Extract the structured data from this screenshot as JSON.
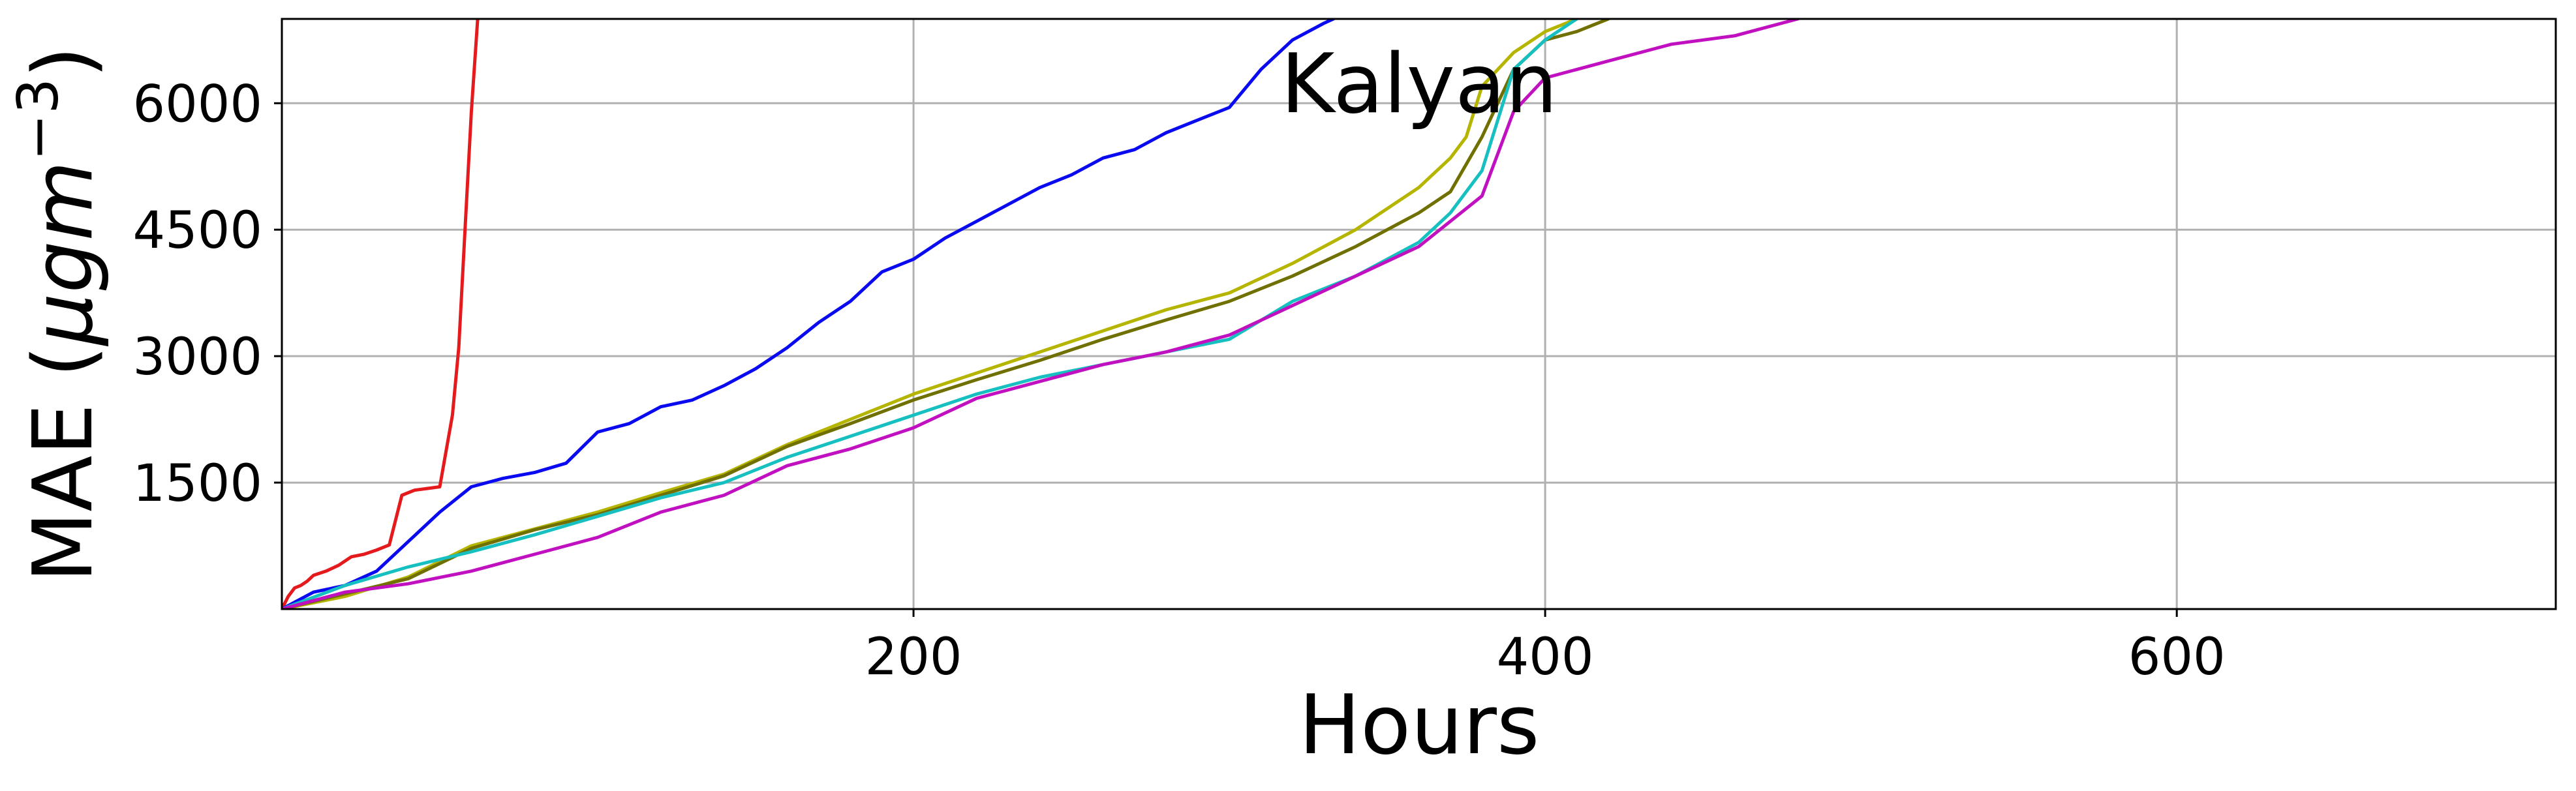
{
  "chart_data": {
    "type": "line",
    "title": "Kalyan",
    "xlabel": "Hours",
    "ylabel": "MAE (μgm⁻³)",
    "ylabel_parts": {
      "main": "MAE (",
      "mu": "μ",
      "rest": "gm",
      "exp": "−3",
      "close": ")"
    },
    "xlim": [
      0,
      720
    ],
    "ylim": [
      0,
      7000
    ],
    "x_ticks": [
      200,
      400,
      600
    ],
    "y_ticks": [
      1500,
      3000,
      4500,
      6000
    ],
    "grid": true,
    "legend": "none",
    "series": [
      {
        "color": "#e41a1c",
        "x": [
          0,
          2,
          4,
          6,
          8,
          10,
          14,
          18,
          22,
          26,
          30,
          34,
          38,
          42,
          46,
          50,
          54,
          56,
          58,
          60,
          62
        ],
        "y": [
          0,
          150,
          250,
          280,
          330,
          400,
          450,
          520,
          620,
          650,
          700,
          760,
          1350,
          1410,
          1430,
          1450,
          2300,
          3100,
          4500,
          5900,
          7000
        ]
      },
      {
        "color": "#0a0af0",
        "x": [
          0,
          10,
          20,
          30,
          40,
          50,
          60,
          70,
          80,
          90,
          100,
          110,
          120,
          130,
          140,
          150,
          160,
          170,
          180,
          190,
          200,
          210,
          220,
          230,
          240,
          250,
          260,
          270,
          280,
          290,
          300,
          310,
          320,
          330,
          333
        ],
        "y": [
          0,
          200,
          280,
          450,
          800,
          1150,
          1450,
          1550,
          1620,
          1730,
          2100,
          2200,
          2400,
          2480,
          2650,
          2850,
          3100,
          3400,
          3650,
          4000,
          4150,
          4400,
          4600,
          4800,
          5000,
          5150,
          5350,
          5450,
          5650,
          5800,
          5950,
          6400,
          6750,
          6950,
          7000
        ]
      },
      {
        "color": "#b5b500",
        "x": [
          0,
          20,
          40,
          60,
          80,
          100,
          120,
          140,
          160,
          180,
          200,
          220,
          240,
          260,
          280,
          300,
          320,
          340,
          360,
          370,
          375,
          380,
          390,
          400,
          410
        ],
        "y": [
          0,
          150,
          380,
          750,
          950,
          1150,
          1380,
          1600,
          1950,
          2250,
          2550,
          2800,
          3050,
          3300,
          3550,
          3750,
          4100,
          4500,
          5000,
          5350,
          5600,
          6200,
          6600,
          6850,
          7000
        ]
      },
      {
        "color": "#707000",
        "x": [
          0,
          20,
          40,
          60,
          80,
          100,
          120,
          140,
          160,
          180,
          200,
          220,
          240,
          260,
          280,
          300,
          320,
          340,
          360,
          370,
          380,
          390,
          400,
          410,
          420
        ],
        "y": [
          0,
          180,
          360,
          720,
          940,
          1120,
          1350,
          1580,
          1930,
          2200,
          2480,
          2720,
          2950,
          3200,
          3430,
          3650,
          3950,
          4300,
          4700,
          4950,
          5600,
          6400,
          6750,
          6850,
          7000
        ]
      },
      {
        "color": "#17c0c0",
        "x": [
          0,
          20,
          40,
          60,
          80,
          100,
          120,
          140,
          160,
          180,
          200,
          220,
          240,
          260,
          280,
          300,
          320,
          340,
          360,
          370,
          380,
          390,
          400,
          410
        ],
        "y": [
          0,
          280,
          500,
          680,
          880,
          1100,
          1320,
          1500,
          1800,
          2050,
          2300,
          2550,
          2750,
          2900,
          3050,
          3200,
          3650,
          3950,
          4350,
          4700,
          5200,
          6400,
          6750,
          7000
        ]
      },
      {
        "color": "#c010c0",
        "x": [
          0,
          20,
          40,
          60,
          80,
          100,
          120,
          140,
          160,
          180,
          200,
          220,
          240,
          260,
          280,
          300,
          320,
          340,
          360,
          370,
          380,
          390,
          400,
          420,
          440,
          460,
          480
        ],
        "y": [
          0,
          200,
          300,
          450,
          650,
          850,
          1150,
          1350,
          1700,
          1900,
          2150,
          2500,
          2700,
          2900,
          3050,
          3250,
          3600,
          3950,
          4300,
          4600,
          4900,
          5900,
          6300,
          6500,
          6700,
          6800,
          7000
        ]
      }
    ]
  }
}
